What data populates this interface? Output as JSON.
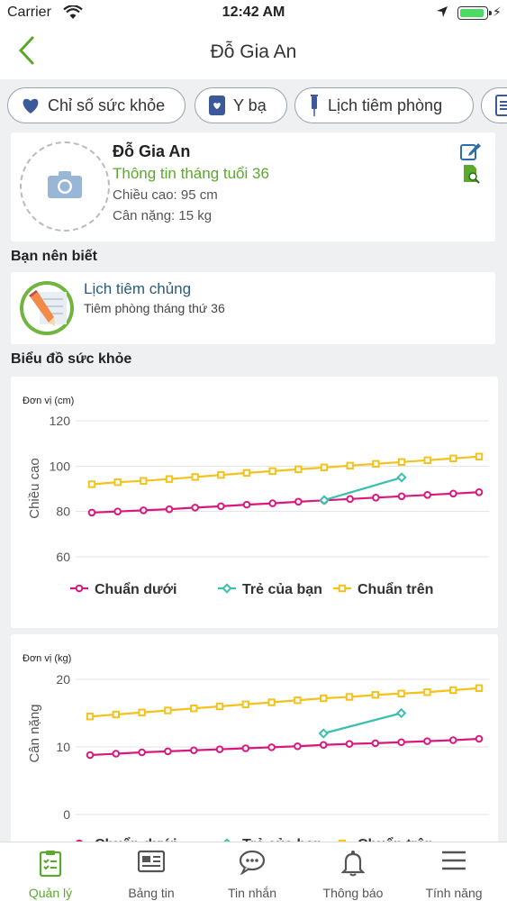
{
  "status_bar": {
    "carrier": "Carrier",
    "time": "12:42 AM"
  },
  "header": {
    "title": "Đỗ Gia An"
  },
  "tabs": [
    {
      "label": "Chỉ số sức khỏe",
      "icon": "heart-icon"
    },
    {
      "label": "Y bạ",
      "icon": "heart-book-icon"
    },
    {
      "label": "Lịch tiêm phòng",
      "icon": "syringe-icon"
    },
    {
      "label": "",
      "icon": "document-icon"
    }
  ],
  "profile": {
    "name": "Đỗ Gia An",
    "month_info": "Thông tin tháng tuổi 36",
    "height": "Chiều cao: 95 cm",
    "weight": "Cân nặng: 15 kg"
  },
  "know_section": {
    "title": "Bạn nên biết",
    "item_title": "Lịch tiêm chủng",
    "item_subtitle": "Tiêm phòng tháng thứ 36"
  },
  "health_chart_title": "Biểu đồ sức khỏe",
  "colors": {
    "lower": "#d9187e",
    "child": "#3bbfae",
    "upper": "#f5c21b",
    "accent": "#5aa82c"
  },
  "chart_data": [
    {
      "type": "line",
      "unit": "Đơn vị (cm)",
      "ylabel": "Chiều cao",
      "ylim": [
        60,
        120
      ],
      "yticks": [
        120,
        100,
        80,
        60
      ],
      "x": [
        0,
        1,
        2,
        3,
        4,
        5,
        6,
        7,
        8,
        9,
        10,
        11,
        12,
        13,
        14,
        15
      ],
      "series": [
        {
          "name": "Chuẩn dưới",
          "values": [
            79.5,
            80,
            80.5,
            81,
            81.7,
            82.3,
            83,
            83.6,
            84.3,
            84.9,
            85.5,
            86.1,
            86.7,
            87.3,
            87.9,
            88.5
          ]
        },
        {
          "name": "Trẻ của bạn",
          "x": [
            9,
            12
          ],
          "values": [
            85,
            95
          ]
        },
        {
          "name": "Chuẩn trên",
          "values": [
            92,
            92.9,
            93.5,
            94.3,
            95.2,
            96.1,
            97,
            97.8,
            98.6,
            99.4,
            100.2,
            101,
            101.8,
            102.6,
            103.4,
            104.2
          ]
        }
      ]
    },
    {
      "type": "line",
      "unit": "Đơn vị (kg)",
      "ylabel": "Cân nặng",
      "ylim": [
        0,
        20
      ],
      "yticks": [
        20,
        10,
        0
      ],
      "x": [
        0,
        1,
        2,
        3,
        4,
        5,
        6,
        7,
        8,
        9,
        10,
        11,
        12,
        13,
        14,
        15
      ],
      "series": [
        {
          "name": "Chuẩn dưới",
          "values": [
            8.8,
            9,
            9.2,
            9.35,
            9.5,
            9.65,
            9.8,
            9.95,
            10.1,
            10.3,
            10.45,
            10.55,
            10.7,
            10.85,
            11,
            11.2
          ]
        },
        {
          "name": "Trẻ của bạn",
          "x": [
            9,
            12
          ],
          "values": [
            12,
            15
          ]
        },
        {
          "name": "Chuẩn trên",
          "values": [
            14.5,
            14.8,
            15.1,
            15.4,
            15.7,
            16,
            16.3,
            16.6,
            16.9,
            17.2,
            17.4,
            17.7,
            17.9,
            18.1,
            18.4,
            18.7
          ]
        }
      ]
    }
  ],
  "tab_bar": [
    {
      "label": "Quản lý",
      "icon": "clipboard-icon",
      "active": true
    },
    {
      "label": "Bảng tin",
      "icon": "newspaper-icon",
      "active": false
    },
    {
      "label": "Tin nhắn",
      "icon": "chat-icon",
      "active": false
    },
    {
      "label": "Thông báo",
      "icon": "bell-icon",
      "active": false
    },
    {
      "label": "Tính năng",
      "icon": "menu-icon",
      "active": false
    }
  ]
}
